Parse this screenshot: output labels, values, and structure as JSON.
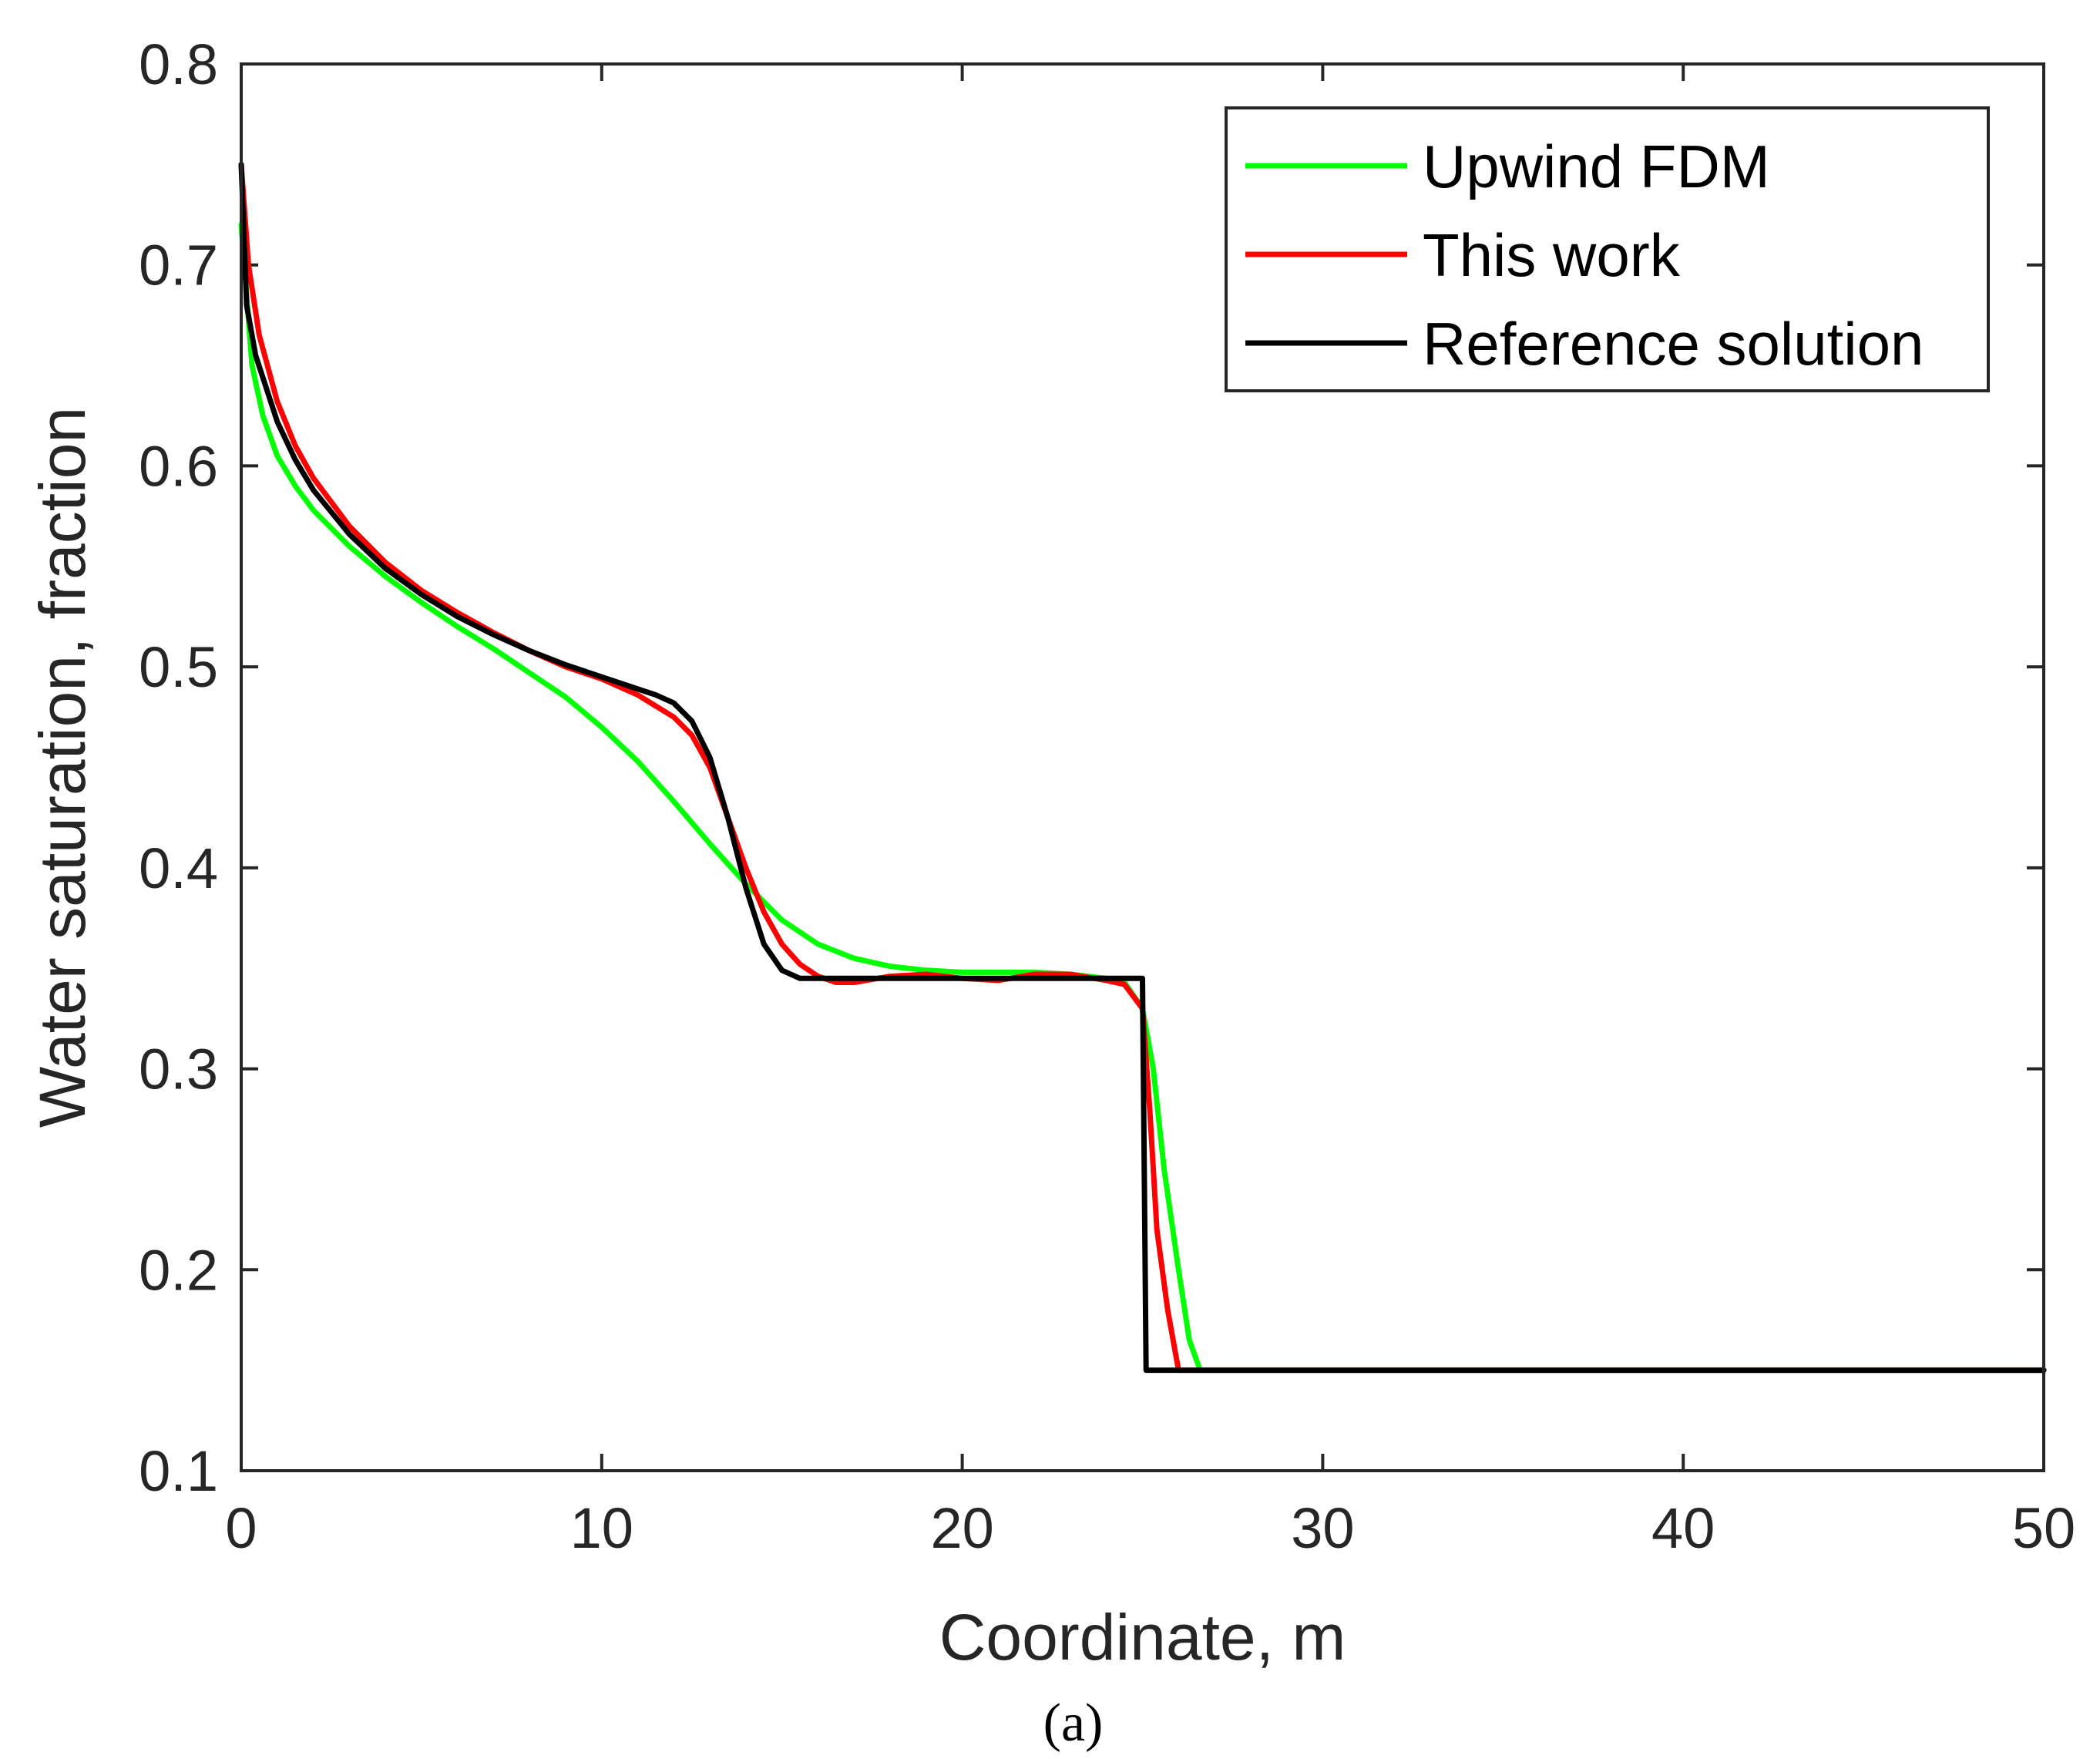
{
  "chart_data": {
    "type": "line",
    "xlabel": "Coordinate, m",
    "ylabel": "Water saturation, fraction",
    "xlim": [
      0,
      50
    ],
    "ylim": [
      0.1,
      0.8
    ],
    "xticks": [
      0,
      10,
      20,
      30,
      40,
      50
    ],
    "yticks": [
      0.1,
      0.2,
      0.3,
      0.4,
      0.5,
      0.6,
      0.7,
      0.8
    ],
    "xtick_labels": [
      "0",
      "10",
      "20",
      "30",
      "40",
      "50"
    ],
    "ytick_labels": [
      "0.1",
      "0.2",
      "0.3",
      "0.4",
      "0.5",
      "0.6",
      "0.7",
      "0.8"
    ],
    "grid": false,
    "legend_position": "top-right",
    "caption": "(a)",
    "series": [
      {
        "name": "Upwind FDM",
        "color": "#00ff00",
        "x": [
          0,
          0.3,
          0.6,
          1,
          1.5,
          2,
          3,
          4,
          5,
          6,
          7,
          8,
          9,
          10,
          11,
          12,
          13,
          14,
          15,
          16,
          17,
          18,
          19,
          20,
          21,
          22,
          23,
          24,
          24.5,
          25,
          25.3,
          25.6,
          26,
          26.3,
          26.6,
          27,
          30,
          40,
          50
        ],
        "y": [
          0.72,
          0.65,
          0.625,
          0.605,
          0.59,
          0.578,
          0.56,
          0.545,
          0.532,
          0.52,
          0.509,
          0.497,
          0.485,
          0.47,
          0.453,
          0.433,
          0.412,
          0.392,
          0.374,
          0.362,
          0.355,
          0.351,
          0.349,
          0.348,
          0.348,
          0.348,
          0.347,
          0.345,
          0.343,
          0.33,
          0.3,
          0.25,
          0.2,
          0.165,
          0.15,
          0.15,
          0.15,
          0.15,
          0.15
        ]
      },
      {
        "name": "This work",
        "color": "#ff0000",
        "x": [
          0,
          0.2,
          0.5,
          1,
          1.5,
          2,
          3,
          4,
          5,
          6,
          7,
          8,
          9,
          10,
          11,
          12,
          12.5,
          13,
          13.5,
          14,
          14.5,
          15,
          15.5,
          16,
          16.5,
          17,
          18,
          19,
          20,
          21,
          22,
          23,
          24,
          24.5,
          25,
          25.2,
          25.4,
          25.7,
          26,
          27,
          30,
          40,
          50
        ],
        "y": [
          0.75,
          0.7,
          0.665,
          0.632,
          0.61,
          0.594,
          0.57,
          0.552,
          0.538,
          0.527,
          0.517,
          0.508,
          0.5,
          0.494,
          0.486,
          0.475,
          0.466,
          0.45,
          0.425,
          0.4,
          0.378,
          0.362,
          0.352,
          0.346,
          0.343,
          0.343,
          0.346,
          0.347,
          0.345,
          0.344,
          0.347,
          0.347,
          0.344,
          0.342,
          0.33,
          0.28,
          0.22,
          0.18,
          0.15,
          0.15,
          0.15,
          0.15,
          0.15
        ]
      },
      {
        "name": "Reference solution",
        "color": "#000000",
        "x": [
          0,
          0.15,
          0.4,
          1,
          1.5,
          2,
          3,
          4,
          5,
          6,
          7,
          8,
          9,
          10,
          11,
          11.5,
          12,
          12.5,
          13,
          13.5,
          14,
          14.5,
          15,
          15.5,
          16,
          17,
          20,
          24,
          25,
          25.05,
          25.1,
          27,
          30,
          40,
          50
        ],
        "y": [
          0.75,
          0.68,
          0.655,
          0.622,
          0.603,
          0.588,
          0.566,
          0.549,
          0.536,
          0.525,
          0.516,
          0.508,
          0.501,
          0.495,
          0.489,
          0.486,
          0.482,
          0.473,
          0.455,
          0.425,
          0.39,
          0.362,
          0.349,
          0.345,
          0.345,
          0.345,
          0.345,
          0.345,
          0.345,
          0.25,
          0.15,
          0.15,
          0.15,
          0.15,
          0.15
        ]
      }
    ]
  }
}
